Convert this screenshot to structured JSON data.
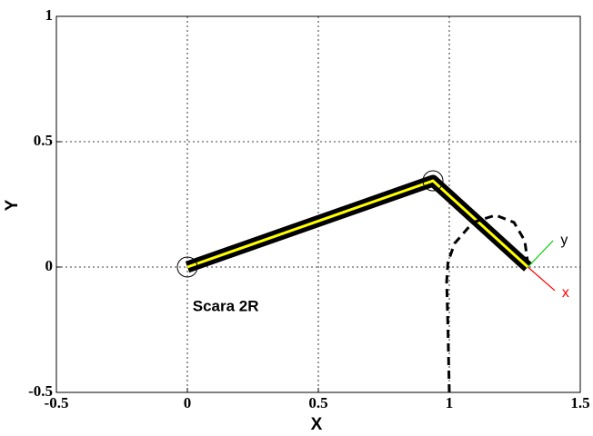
{
  "chart_data": {
    "type": "line",
    "xlabel": "X",
    "ylabel": "Y",
    "xlim": [
      -0.5,
      1.5
    ],
    "ylim": [
      -0.5,
      1
    ],
    "xticks": [
      -0.5,
      0,
      0.5,
      1,
      1.5
    ],
    "yticks": [
      -0.5,
      0,
      0.5,
      1
    ],
    "grid": true,
    "series": [
      {
        "color": "#000000",
        "inner_color": "#ffff00",
        "style": "link",
        "x": [
          0,
          0.9375,
          1.3
        ],
        "values": [
          0,
          0.344,
          0
        ]
      },
      {
        "color": "#000000",
        "style": "dashed",
        "x": [
          1.0,
          0.995,
          0.99,
          0.995,
          1.02,
          1.09,
          1.177,
          1.247,
          1.288,
          1.3
        ],
        "values": [
          -0.5,
          -0.25,
          -0.058,
          0.02,
          0.094,
          0.178,
          0.207,
          0.178,
          0.105,
          0.014
        ]
      },
      {
        "color": "#ff0000",
        "style": "thin",
        "x": [
          1.3,
          1.403
        ],
        "values": [
          0,
          -0.094
        ]
      },
      {
        "color": "#00cc00",
        "style": "thin",
        "x": [
          1.3,
          1.396
        ],
        "values": [
          0,
          0.105
        ]
      }
    ],
    "annotations": [
      {
        "text": "Scara 2R",
        "x": 0.02,
        "y": -0.16,
        "color": "#000000",
        "bold": true
      },
      {
        "text": "x",
        "x": 1.43,
        "y": -0.105,
        "color": "#ff0000",
        "bold": false
      },
      {
        "text": "y",
        "x": 1.425,
        "y": 0.105,
        "color": "#000000",
        "bold": false
      }
    ]
  }
}
